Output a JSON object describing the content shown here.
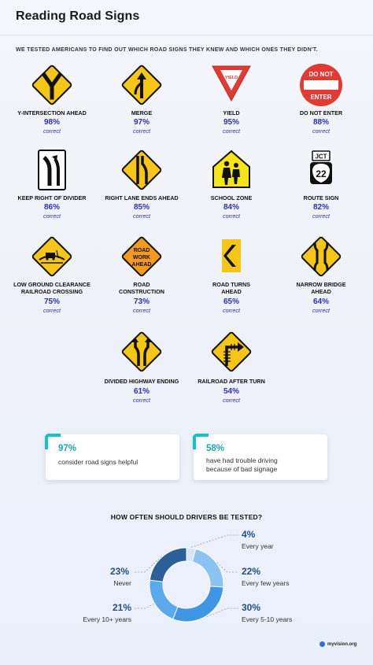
{
  "page": {
    "title": "Reading Road Signs",
    "subtitle": "WE TESTED AMERICANS TO FIND OUT WHICH ROAD SIGNS THEY KNEW AND WHICH ONES THEY DIDN'T.",
    "brand": "myvision.org"
  },
  "signs": [
    {
      "name": "Y-INTERSECTION AHEAD",
      "pct": "98%",
      "correct": "correct",
      "icon": "y-intersection-sign-icon"
    },
    {
      "name": "MERGE",
      "pct": "97%",
      "correct": "correct",
      "icon": "merge-sign-icon"
    },
    {
      "name": "YIELD",
      "pct": "95%",
      "correct": "correct",
      "icon": "yield-sign-icon",
      "sign_text": "YIELD"
    },
    {
      "name": "DO NOT ENTER",
      "pct": "88%",
      "correct": "correct",
      "icon": "do-not-enter-sign-icon",
      "sign_text_top": "DO NOT",
      "sign_text_bottom": "ENTER"
    },
    {
      "name": "KEEP RIGHT OF DIVIDER",
      "pct": "86%",
      "correct": "correct",
      "icon": "keep-right-sign-icon"
    },
    {
      "name": "RIGHT LANE ENDS AHEAD",
      "pct": "85%",
      "correct": "correct",
      "icon": "lane-ends-sign-icon"
    },
    {
      "name": "SCHOOL ZONE",
      "pct": "84%",
      "correct": "correct",
      "icon": "school-zone-sign-icon"
    },
    {
      "name": "ROUTE SIGN",
      "pct": "82%",
      "correct": "correct",
      "icon": "route-sign-icon",
      "sign_text_top": "JCT",
      "sign_text_number": "22"
    },
    {
      "name": "LOW GROUND CLEARANCE\nRAILROAD CROSSING",
      "pct": "75%",
      "correct": "correct",
      "icon": "low-clearance-sign-icon"
    },
    {
      "name": "ROAD\nCONSTRUCTION",
      "pct": "73%",
      "correct": "correct",
      "icon": "road-work-sign-icon",
      "sign_lines": [
        "ROAD",
        "WORK",
        "AHEAD"
      ]
    },
    {
      "name": "ROAD TURNS\nAHEAD",
      "pct": "65%",
      "correct": "correct",
      "icon": "chevron-sign-icon"
    },
    {
      "name": "NARROW BRIDGE\nAHEAD",
      "pct": "64%",
      "correct": "correct",
      "icon": "narrow-bridge-sign-icon"
    },
    {
      "name": "DIVIDED HIGHWAY ENDING",
      "pct": "61%",
      "correct": "correct",
      "icon": "divided-highway-ends-sign-icon"
    },
    {
      "name": "RAILROAD AFTER TURN",
      "pct": "54%",
      "correct": "correct",
      "icon": "railroad-after-turn-sign-icon"
    }
  ],
  "stats": [
    {
      "value": "97%",
      "text": "consider road signs helpful"
    },
    {
      "value": "58%",
      "text": "have had trouble driving\nbecause of bad signage"
    }
  ],
  "chart_data": {
    "type": "pie",
    "title": "HOW OFTEN SHOULD DRIVERS BE TESTED?",
    "categories": [
      "Every year",
      "Every few years",
      "Every 5-10 years",
      "Every 10+ years",
      "Never"
    ],
    "values": [
      4,
      22,
      30,
      21,
      23
    ],
    "labels": [
      "4%",
      "22%",
      "30%",
      "21%",
      "23%"
    ],
    "colors": [
      "#d6e6f7",
      "#8cc4f1",
      "#3f97e3",
      "#5aa9ea",
      "#2c5e97"
    ]
  },
  "colors": {
    "accent": "#2b2fb0",
    "card_accent": "#12c3c7",
    "sign_yellow": "#f5c518",
    "sign_orange": "#f39a1f",
    "sign_red": "#e23b34"
  }
}
